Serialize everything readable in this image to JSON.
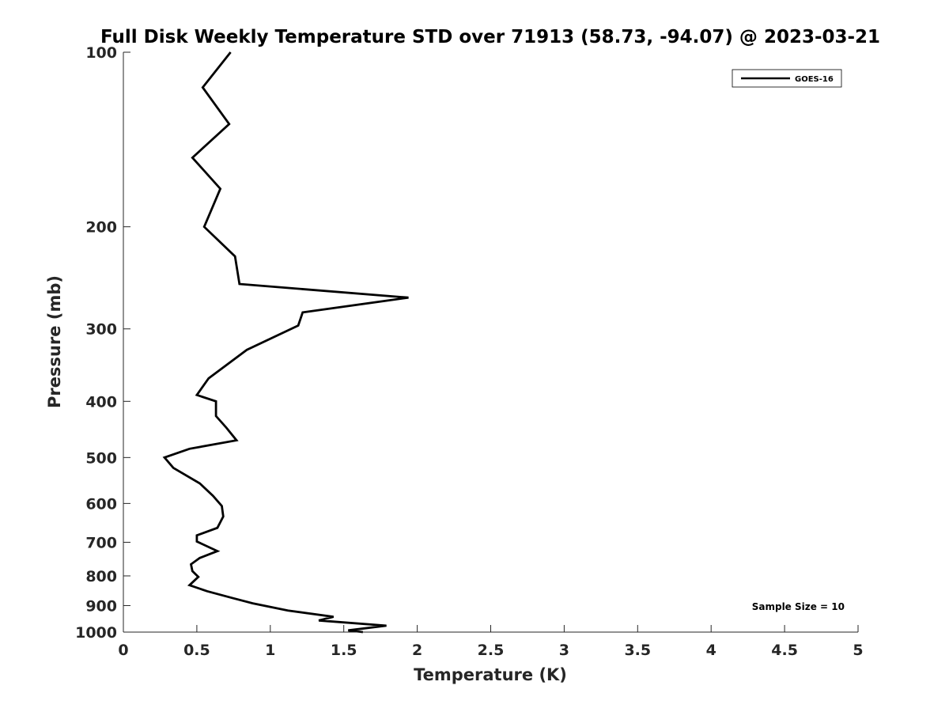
{
  "chart_data": {
    "type": "line",
    "title": "Full Disk Weekly Temperature STD over 71913 (58.73, -94.07) @ 2023-03-21",
    "xlabel": "Temperature (K)",
    "ylabel": "Pressure (mb)",
    "xlim": [
      0,
      5
    ],
    "ylim": [
      100,
      1000
    ],
    "y_scale": "log",
    "y_reversed": true,
    "x_ticks": [
      "0",
      "0.5",
      "1",
      "1.5",
      "2",
      "2.5",
      "3",
      "3.5",
      "4",
      "4.5",
      "5"
    ],
    "y_ticks": [
      "100",
      "200",
      "300",
      "400",
      "500",
      "600",
      "700",
      "800",
      "900",
      "1000"
    ],
    "grid": false,
    "legend_position": "top-right",
    "annotation": "Sample Size = 10",
    "series": [
      {
        "name": "GOES-16",
        "color": "#000000",
        "x": [
          0.73,
          0.54,
          0.72,
          0.47,
          0.66,
          0.55,
          0.76,
          0.79,
          1.94,
          1.22,
          1.19,
          0.84,
          0.58,
          0.5,
          0.63,
          0.63,
          0.7,
          0.77,
          0.45,
          0.28,
          0.34,
          0.52,
          0.61,
          0.67,
          0.68,
          0.64,
          0.5,
          0.5,
          0.64,
          0.52,
          0.46,
          0.47,
          0.51,
          0.45,
          0.57,
          0.74,
          0.88,
          1.12,
          1.43,
          1.33,
          1.79,
          1.53,
          1.63
        ],
        "y": [
          100,
          115,
          133,
          152,
          172,
          200,
          225,
          251,
          265,
          281,
          296,
          326,
          365,
          390,
          400,
          424,
          444,
          467,
          483,
          500,
          521,
          554,
          582,
          606,
          632,
          661,
          681,
          698,
          725,
          745,
          764,
          785,
          803,
          830,
          850,
          873,
          892,
          918,
          941,
          955,
          975,
          993,
          1000
        ]
      }
    ]
  }
}
